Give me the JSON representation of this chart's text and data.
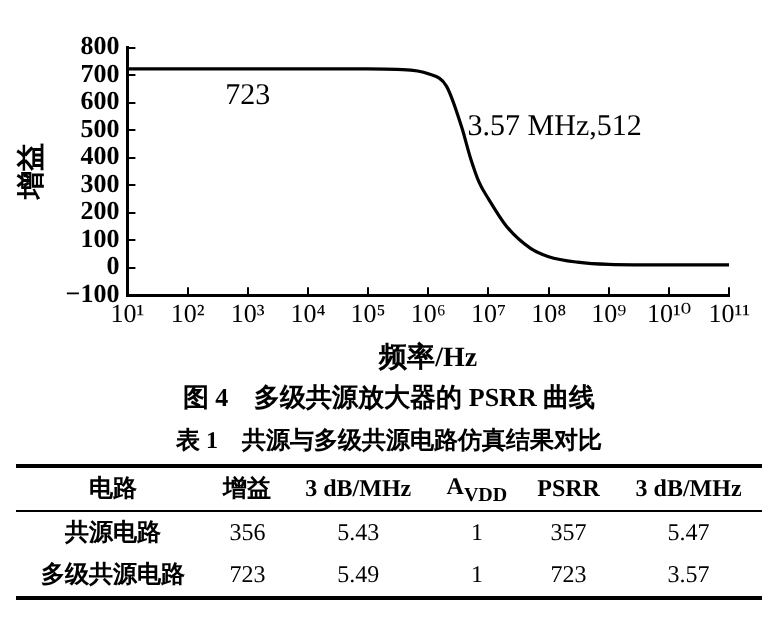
{
  "chart_data": [
    {
      "type": "line",
      "title": "图 4　多级共源放大器的 PSRR 曲线",
      "xlabel": "频率/Hz",
      "ylabel": "增益",
      "log": "x",
      "grid": false,
      "legend": false,
      "marker": "none",
      "line_style": "solid",
      "x": [
        10,
        100000,
        300000,
        1000000,
        2000000,
        3570000,
        5000000,
        7000000,
        10000000,
        20000000,
        50000000,
        100000000,
        300000000,
        1000000000,
        10000000000,
        100000000000
      ],
      "series": [
        {
          "color": "#000000",
          "values": [
            723,
            723,
            721,
            705,
            660,
            512,
            400,
            310,
            250,
            150,
            70,
            40,
            20,
            12,
            10,
            10
          ]
        }
      ],
      "xlim": [
        10,
        100000000000
      ],
      "xticks": [
        {
          "value": 10,
          "label": "10¹"
        },
        {
          "value": 100,
          "label": "10²"
        },
        {
          "value": 1000,
          "label": "10³"
        },
        {
          "value": 10000,
          "label": "10⁴"
        },
        {
          "value": 100000,
          "label": "10⁵"
        },
        {
          "value": 1000000,
          "label": "10⁶"
        },
        {
          "value": 10000000,
          "label": "10⁷"
        },
        {
          "value": 100000000,
          "label": "10⁸"
        },
        {
          "value": 1000000000,
          "label": "10⁹"
        },
        {
          "value": 10000000000,
          "label": "10¹⁰"
        },
        {
          "value": 100000000000,
          "label": "10¹¹"
        }
      ],
      "ylim": [
        -100,
        800
      ],
      "yticks": [
        -100,
        0,
        100,
        200,
        300,
        400,
        500,
        600,
        700,
        800
      ],
      "annotations": [
        {
          "text": "723",
          "x": 1000,
          "y": 723
        },
        {
          "text": "3.57 MHz,512",
          "x": 3570000,
          "y": 512
        }
      ]
    },
    {
      "type": "other",
      "title": "表 1　共源与多级共源电路仿真结果对比",
      "categories": [
        "电路",
        "增益",
        "3 dB/MHz",
        "A$_{VDD}$",
        "PSRR",
        "3 dB/MHz"
      ],
      "y_categories": [
        "共源电路",
        "多级共源电路"
      ],
      "cell_labels": [
        [
          "356",
          "5.43",
          "1",
          "357",
          "5.47"
        ],
        [
          "723",
          "5.49",
          "1",
          "723",
          "3.57"
        ]
      ]
    }
  ]
}
